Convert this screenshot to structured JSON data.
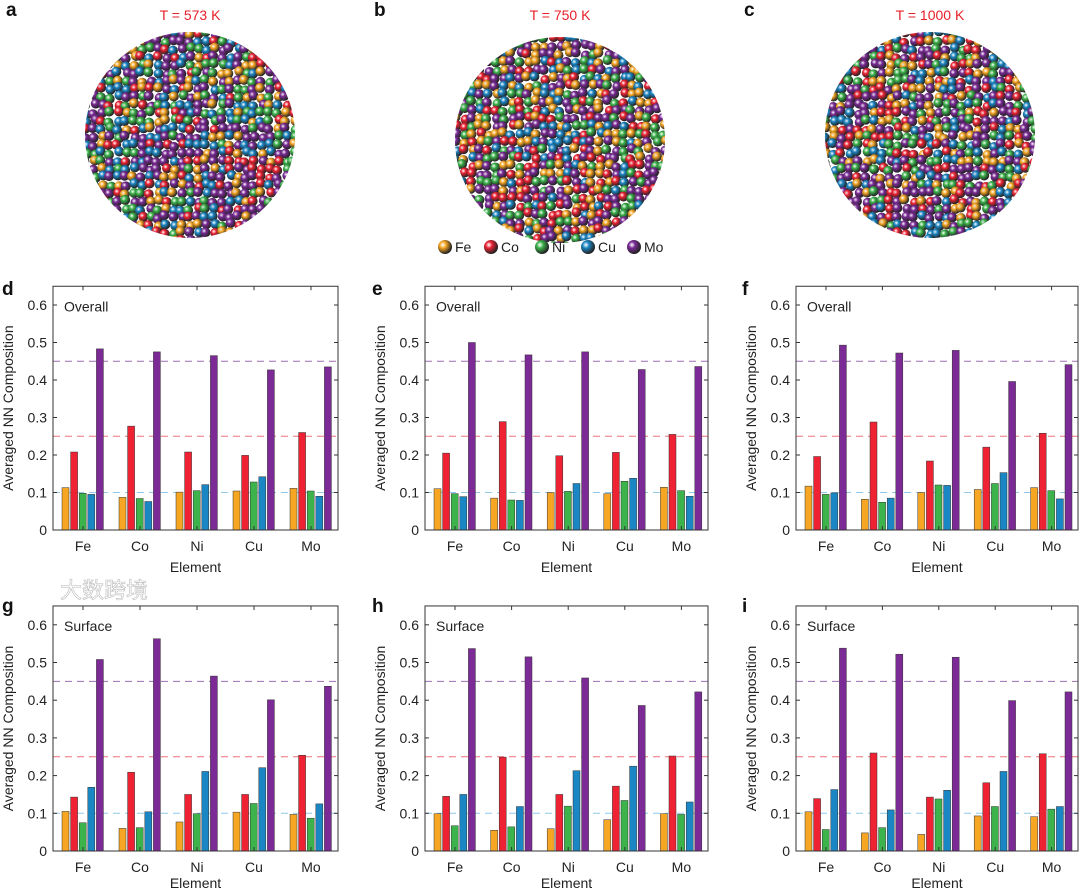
{
  "panels_top": [
    {
      "label": "a",
      "title": "T = 573 K"
    },
    {
      "label": "b",
      "title": "T = 750 K"
    },
    {
      "label": "c",
      "title": "T = 1000 K"
    }
  ],
  "legend": [
    {
      "name": "Fe",
      "color": "#f6a623"
    },
    {
      "name": "Co",
      "color": "#ee2233"
    },
    {
      "name": "Ni",
      "color": "#3cb44b"
    },
    {
      "name": "Cu",
      "color": "#1b86c4"
    },
    {
      "name": "Mo",
      "color": "#7b2a96"
    }
  ],
  "watermark": "大数跨境",
  "chart_data": [
    {
      "panel": "d",
      "type": "bar",
      "annotation": "Overall",
      "xlabel": "Element",
      "ylabel": "Averaged NN Composition",
      "ylim": [
        0,
        0.65
      ],
      "yticks": [
        "0",
        "0.1",
        "0.2",
        "0.3",
        "0.4",
        "0.5",
        "0.6"
      ],
      "categories": [
        "Fe",
        "Co",
        "Ni",
        "Cu",
        "Mo"
      ],
      "reference_lines": [
        0.45,
        0.25,
        0.1
      ],
      "series": [
        {
          "name": "Fe",
          "values": [
            0.113,
            0.087,
            0.101,
            0.104,
            0.111
          ]
        },
        {
          "name": "Co",
          "values": [
            0.208,
            0.277,
            0.208,
            0.199,
            0.26
          ]
        },
        {
          "name": "Ni",
          "values": [
            0.098,
            0.084,
            0.105,
            0.128,
            0.104
          ]
        },
        {
          "name": "Cu",
          "values": [
            0.095,
            0.076,
            0.121,
            0.142,
            0.09
          ]
        },
        {
          "name": "Mo",
          "values": [
            0.483,
            0.475,
            0.465,
            0.427,
            0.435
          ]
        }
      ]
    },
    {
      "panel": "e",
      "type": "bar",
      "annotation": "Overall",
      "xlabel": "Element",
      "ylabel": "Averaged NN Composition",
      "ylim": [
        0,
        0.65
      ],
      "yticks": [
        "0",
        "0.1",
        "0.2",
        "0.3",
        "0.4",
        "0.5",
        "0.6"
      ],
      "categories": [
        "Fe",
        "Co",
        "Ni",
        "Cu",
        "Mo"
      ],
      "reference_lines": [
        0.45,
        0.25,
        0.1
      ],
      "series": [
        {
          "name": "Fe",
          "values": [
            0.11,
            0.085,
            0.1,
            0.097,
            0.114
          ]
        },
        {
          "name": "Co",
          "values": [
            0.205,
            0.289,
            0.198,
            0.207,
            0.255
          ]
        },
        {
          "name": "Ni",
          "values": [
            0.097,
            0.08,
            0.103,
            0.13,
            0.105
          ]
        },
        {
          "name": "Cu",
          "values": [
            0.089,
            0.079,
            0.124,
            0.138,
            0.09
          ]
        },
        {
          "name": "Mo",
          "values": [
            0.5,
            0.467,
            0.475,
            0.428,
            0.436
          ]
        }
      ]
    },
    {
      "panel": "f",
      "type": "bar",
      "annotation": "Overall",
      "xlabel": "Element",
      "ylabel": "Averaged NN Composition",
      "ylim": [
        0,
        0.65
      ],
      "yticks": [
        "0",
        "0.1",
        "0.2",
        "0.3",
        "0.4",
        "0.5",
        "0.6"
      ],
      "categories": [
        "Fe",
        "Co",
        "Ni",
        "Cu",
        "Mo"
      ],
      "reference_lines": [
        0.45,
        0.25,
        0.1
      ],
      "series": [
        {
          "name": "Fe",
          "values": [
            0.117,
            0.082,
            0.1,
            0.108,
            0.113
          ]
        },
        {
          "name": "Co",
          "values": [
            0.196,
            0.288,
            0.184,
            0.221,
            0.258
          ]
        },
        {
          "name": "Ni",
          "values": [
            0.095,
            0.074,
            0.12,
            0.124,
            0.105
          ]
        },
        {
          "name": "Cu",
          "values": [
            0.099,
            0.085,
            0.119,
            0.153,
            0.083
          ]
        },
        {
          "name": "Mo",
          "values": [
            0.493,
            0.472,
            0.479,
            0.396,
            0.441
          ]
        }
      ]
    },
    {
      "panel": "g",
      "type": "bar",
      "annotation": "Surface",
      "xlabel": "Element",
      "ylabel": "Averaged NN Composition",
      "ylim": [
        0,
        0.65
      ],
      "yticks": [
        "0",
        "0.1",
        "0.2",
        "0.3",
        "0.4",
        "0.5",
        "0.6"
      ],
      "categories": [
        "Fe",
        "Co",
        "Ni",
        "Cu",
        "Mo"
      ],
      "reference_lines": [
        0.45,
        0.25,
        0.1
      ],
      "series": [
        {
          "name": "Fe",
          "values": [
            0.105,
            0.06,
            0.077,
            0.103,
            0.097
          ]
        },
        {
          "name": "Co",
          "values": [
            0.143,
            0.209,
            0.15,
            0.15,
            0.254
          ]
        },
        {
          "name": "Ni",
          "values": [
            0.075,
            0.062,
            0.099,
            0.126,
            0.087
          ]
        },
        {
          "name": "Cu",
          "values": [
            0.169,
            0.104,
            0.211,
            0.221,
            0.125
          ]
        },
        {
          "name": "Mo",
          "values": [
            0.508,
            0.563,
            0.464,
            0.401,
            0.437
          ]
        }
      ]
    },
    {
      "panel": "h",
      "type": "bar",
      "annotation": "Surface",
      "xlabel": "Element",
      "ylabel": "Averaged NN Composition",
      "ylim": [
        0,
        0.65
      ],
      "yticks": [
        "0",
        "0.1",
        "0.2",
        "0.3",
        "0.4",
        "0.5",
        "0.6"
      ],
      "categories": [
        "Fe",
        "Co",
        "Ni",
        "Cu",
        "Mo"
      ],
      "reference_lines": [
        0.45,
        0.25,
        0.1
      ],
      "series": [
        {
          "name": "Fe",
          "values": [
            0.099,
            0.055,
            0.059,
            0.083,
            0.099
          ]
        },
        {
          "name": "Co",
          "values": [
            0.145,
            0.249,
            0.15,
            0.172,
            0.252
          ]
        },
        {
          "name": "Ni",
          "values": [
            0.067,
            0.064,
            0.119,
            0.134,
            0.097
          ]
        },
        {
          "name": "Cu",
          "values": [
            0.15,
            0.118,
            0.213,
            0.225,
            0.13
          ]
        },
        {
          "name": "Mo",
          "values": [
            0.537,
            0.515,
            0.459,
            0.386,
            0.422
          ]
        }
      ]
    },
    {
      "panel": "i",
      "type": "bar",
      "annotation": "Surface",
      "xlabel": "Element",
      "ylabel": "Averaged NN Composition",
      "ylim": [
        0,
        0.65
      ],
      "yticks": [
        "0",
        "0.1",
        "0.2",
        "0.3",
        "0.4",
        "0.5",
        "0.6"
      ],
      "categories": [
        "Fe",
        "Co",
        "Ni",
        "Cu",
        "Mo"
      ],
      "reference_lines": [
        0.45,
        0.25,
        0.1
      ],
      "series": [
        {
          "name": "Fe",
          "values": [
            0.104,
            0.048,
            0.044,
            0.093,
            0.091
          ]
        },
        {
          "name": "Co",
          "values": [
            0.139,
            0.26,
            0.143,
            0.181,
            0.258
          ]
        },
        {
          "name": "Ni",
          "values": [
            0.057,
            0.062,
            0.138,
            0.118,
            0.111
          ]
        },
        {
          "name": "Cu",
          "values": [
            0.163,
            0.109,
            0.161,
            0.211,
            0.118
          ]
        },
        {
          "name": "Mo",
          "values": [
            0.538,
            0.522,
            0.514,
            0.399,
            0.422
          ]
        }
      ]
    }
  ]
}
